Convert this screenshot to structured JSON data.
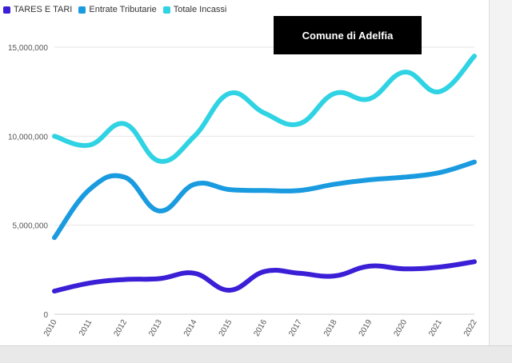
{
  "chart_data": {
    "type": "line",
    "title": "Comune di Adelfia",
    "x": [
      "2010",
      "2011",
      "2012",
      "2013",
      "2014",
      "2015",
      "2016",
      "2017",
      "2018",
      "2019",
      "2020",
      "2021",
      "2022"
    ],
    "ylim": [
      0,
      15000000
    ],
    "yticks": [
      0,
      5000000,
      10000000,
      15000000
    ],
    "ytick_labels": [
      "0",
      "5,000,000",
      "10,000,000",
      "15,000,000"
    ],
    "grid": true,
    "legend_position": "top-left",
    "series": [
      {
        "name": "TARES E TARI",
        "color": "#3a1fd6",
        "values": [
          1300000,
          1750000,
          1950000,
          2000000,
          2300000,
          1350000,
          2400000,
          2300000,
          2150000,
          2700000,
          2550000,
          2650000,
          2950000
        ]
      },
      {
        "name": "Entrate Tributarie",
        "color": "#1a9be0",
        "values": [
          4300000,
          7000000,
          7700000,
          5800000,
          7300000,
          7000000,
          6950000,
          6950000,
          7300000,
          7550000,
          7700000,
          7950000,
          8550000
        ]
      },
      {
        "name": "Totale Incassi",
        "color": "#2fd3e3",
        "values": [
          10000000,
          9500000,
          10700000,
          8600000,
          10000000,
          12400000,
          11300000,
          10700000,
          12400000,
          12100000,
          13600000,
          12500000,
          14500000
        ]
      }
    ]
  }
}
